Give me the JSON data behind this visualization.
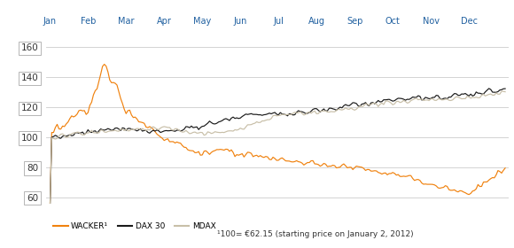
{
  "months": [
    "Jan",
    "Feb",
    "Mar",
    "Apr",
    "May",
    "Jun",
    "Jul",
    "Aug",
    "Sep",
    "Oct",
    "Nov",
    "Dec"
  ],
  "yticks": [
    60,
    80,
    100,
    120,
    140,
    160
  ],
  "ylim": [
    56,
    170
  ],
  "wacker_color": "#f0820f",
  "dax_color": "#1a1a1a",
  "mdax_color": "#c8bfa8",
  "bg_color": "#ffffff",
  "grid_color": "#cccccc",
  "axis_label_color": "#2060a0",
  "tick_label_color": "#333333",
  "legend_items": [
    "WACKER¹",
    "DAX 30",
    "MDAX"
  ],
  "footnote": "¹100= €62.15 (starting price on January 2, 2012)"
}
